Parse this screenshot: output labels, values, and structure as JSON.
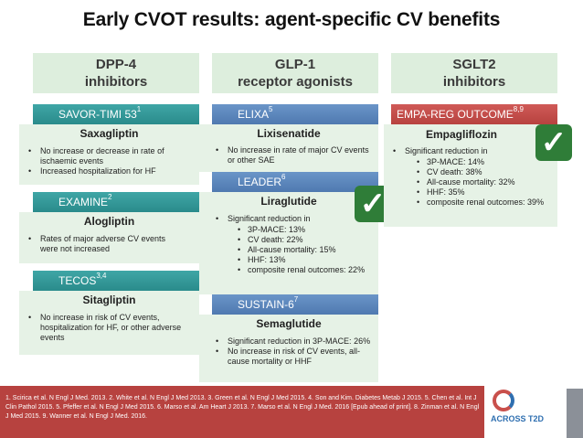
{
  "title": "Early CVOT results: agent-specific CV benefits",
  "columns": [
    {
      "head_line1": "DPP-4",
      "head_line2": "inhibitors"
    },
    {
      "head_line1": "GLP-1",
      "head_line2": "receptor agonists"
    },
    {
      "head_line1": "SGLT2",
      "head_line2": "inhibitors"
    }
  ],
  "trials": {
    "savor": {
      "name": "SAVOR-TIMI 53",
      "ref": "1",
      "drug": "Saxagliptin",
      "bullets": [
        "No increase or decrease in rate of ischaemic events",
        "Increased hospitalization for HF"
      ]
    },
    "examine": {
      "name": "EXAMINE",
      "ref": "2",
      "drug": "Alogliptin",
      "bullets": [
        "Rates of major adverse CV events were not increased"
      ]
    },
    "tecos": {
      "name": "TECOS",
      "ref": "3,4",
      "drug": "Sitagliptin",
      "bullets": [
        "No increase in risk of CV events, hospitalization for HF, or other adverse events"
      ]
    },
    "elixa": {
      "name": "ELIXA",
      "ref": "5",
      "drug": "Lixisenatide",
      "bullets": [
        "No increase in rate of major CV events or other SAE"
      ]
    },
    "leader": {
      "name": "LEADER",
      "ref": "6",
      "drug": "Liraglutide",
      "bullet": "Significant reduction in",
      "sub": [
        "3P-MACE: 13%",
        "CV death: 22%",
        "All-cause mortality: 15%",
        "HHF: 13%",
        "composite renal outcomes: 22%"
      ]
    },
    "sustain": {
      "name": "SUSTAIN-6",
      "ref": "7",
      "drug": "Semaglutide",
      "bullets": [
        "Significant reduction in 3P-MACE: 26%",
        "No increase in risk of CV events, all-cause mortality or HHF"
      ]
    },
    "empareg": {
      "name": "EMPA-REG OUTCOME",
      "ref": "8,9",
      "drug": "Empagliflozin",
      "bullet": "Significant reduction in",
      "sub": [
        "3P-MACE: 14%",
        "CV death: 38%",
        "All-cause mortality: 32%",
        "HHF: 35%",
        "composite renal outcomes: 39%"
      ]
    }
  },
  "check_glyph": "✓",
  "references": "1. Scirica et al. N Engl J Med. 2013. 2. White et al. N Engl J Med 2013. 3. Green et al. N Engl J Med 2015. 4. Son and Kim. Diabetes Metab J 2015. 5. Chen et al. Int J Clin Pathol 2015. 5. Pfeffer et al. N Engl J Med 2015.  6. Marso et al. Am Heart J 2013. 7. Marso et al. N Engl J Med. 2016 [Epub ahead of print]. 8. Zinman et al. N Engl J Med 2015. 9. Wanner et al. N Engl J Med. 2016.",
  "logo": {
    "text": "ACROSS T2D"
  },
  "colors": {
    "teal": "#2a8b8b",
    "blue": "#4f79b0",
    "red": "#b7423f",
    "panel": "#e6f2e6",
    "check": "#2f7d38"
  }
}
